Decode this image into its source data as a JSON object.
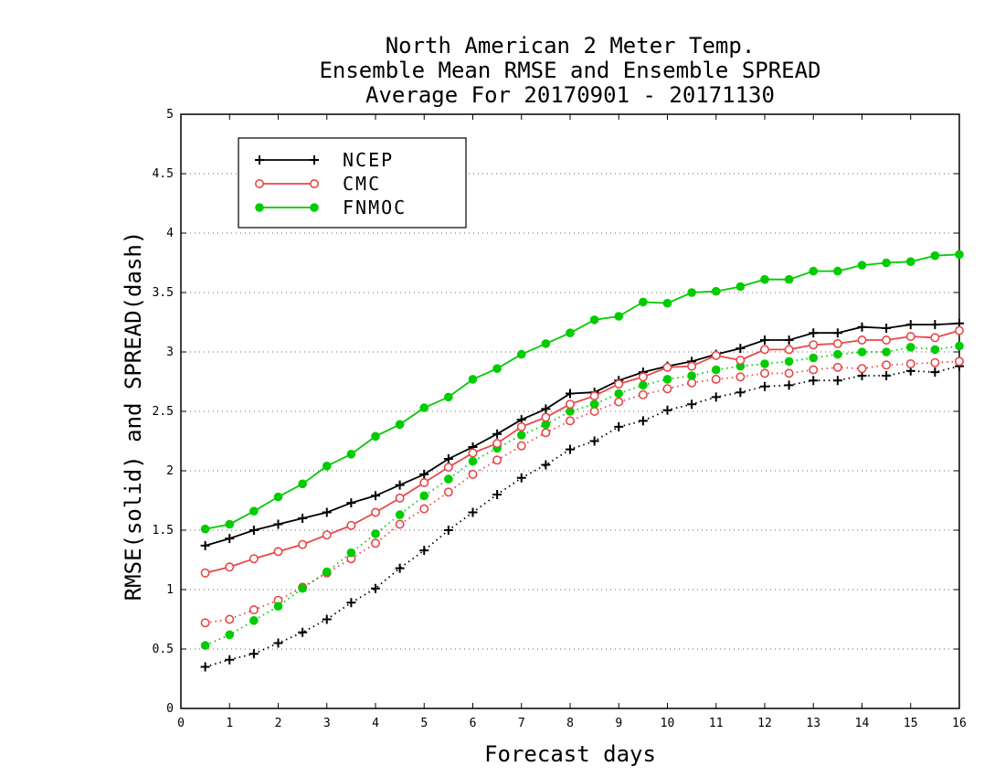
{
  "chart_data": {
    "type": "line",
    "title": [
      "North American 2 Meter Temp.",
      "Ensemble Mean RMSE and Ensemble SPREAD",
      "Average For 20170901 - 20171130"
    ],
    "xlabel": "Forecast days",
    "ylabel": "RMSE(solid) and SPREAD(dash)",
    "xlim": [
      0,
      16
    ],
    "ylim": [
      0,
      5
    ],
    "x_ticks": [
      "0",
      "1",
      "2",
      "3",
      "4",
      "5",
      "6",
      "7",
      "8",
      "9",
      "10",
      "11",
      "12",
      "13",
      "14",
      "15",
      "16"
    ],
    "y_ticks": [
      "0",
      "0.5",
      "1",
      "1.5",
      "2",
      "2.5",
      "3",
      "3.5",
      "4",
      "4.5",
      "5"
    ],
    "grid": "horizontal dotted",
    "legend_position": "top-left",
    "x": [
      0.5,
      1,
      1.5,
      2,
      2.5,
      3,
      3.5,
      4,
      4.5,
      5,
      5.5,
      6,
      6.5,
      7,
      7.5,
      8,
      8.5,
      9,
      9.5,
      10,
      10.5,
      11,
      11.5,
      12,
      12.5,
      13,
      13.5,
      14,
      14.5,
      15,
      15.5,
      16
    ],
    "series": [
      {
        "name": "NCEP",
        "color": "#000000",
        "marker": "plus",
        "rmse": [
          1.37,
          1.43,
          1.5,
          1.55,
          1.6,
          1.65,
          1.73,
          1.79,
          1.88,
          1.97,
          2.1,
          2.2,
          2.31,
          2.43,
          2.52,
          2.65,
          2.66,
          2.76,
          2.83,
          2.88,
          2.92,
          2.98,
          3.03,
          3.1,
          3.1,
          3.16,
          3.16,
          3.21,
          3.2,
          3.23,
          3.23,
          3.24
        ],
        "spread": [
          0.35,
          0.41,
          0.46,
          0.55,
          0.64,
          0.75,
          0.89,
          1.01,
          1.18,
          1.33,
          1.5,
          1.65,
          1.8,
          1.94,
          2.05,
          2.18,
          2.25,
          2.37,
          2.42,
          2.51,
          2.56,
          2.62,
          2.66,
          2.71,
          2.72,
          2.76,
          2.76,
          2.8,
          2.8,
          2.84,
          2.83,
          2.88
        ]
      },
      {
        "name": "CMC",
        "color": "#e8474a",
        "marker": "open-circle",
        "rmse": [
          1.14,
          1.19,
          1.26,
          1.32,
          1.38,
          1.46,
          1.54,
          1.65,
          1.77,
          1.9,
          2.03,
          2.15,
          2.23,
          2.37,
          2.45,
          2.56,
          2.63,
          2.73,
          2.79,
          2.87,
          2.88,
          2.97,
          2.93,
          3.02,
          3.02,
          3.06,
          3.07,
          3.1,
          3.1,
          3.13,
          3.12,
          3.18
        ],
        "spread": [
          0.72,
          0.75,
          0.83,
          0.91,
          1.02,
          1.14,
          1.26,
          1.39,
          1.55,
          1.68,
          1.82,
          1.97,
          2.09,
          2.21,
          2.32,
          2.42,
          2.5,
          2.58,
          2.64,
          2.69,
          2.74,
          2.77,
          2.79,
          2.82,
          2.82,
          2.85,
          2.87,
          2.86,
          2.89,
          2.9,
          2.91,
          2.92
        ]
      },
      {
        "name": "FNMOC",
        "color": "#00cc00",
        "marker": "filled-circle",
        "rmse": [
          1.51,
          1.55,
          1.66,
          1.78,
          1.89,
          2.04,
          2.14,
          2.29,
          2.39,
          2.53,
          2.62,
          2.77,
          2.86,
          2.98,
          3.07,
          3.16,
          3.27,
          3.3,
          3.42,
          3.41,
          3.5,
          3.51,
          3.55,
          3.61,
          3.61,
          3.68,
          3.68,
          3.73,
          3.75,
          3.76,
          3.81,
          3.82
        ],
        "spread": [
          0.53,
          0.62,
          0.74,
          0.86,
          1.01,
          1.15,
          1.31,
          1.47,
          1.63,
          1.79,
          1.93,
          2.08,
          2.19,
          2.3,
          2.39,
          2.5,
          2.56,
          2.65,
          2.72,
          2.77,
          2.8,
          2.85,
          2.88,
          2.9,
          2.92,
          2.95,
          2.98,
          3.0,
          3.0,
          3.04,
          3.02,
          3.05
        ]
      }
    ]
  }
}
